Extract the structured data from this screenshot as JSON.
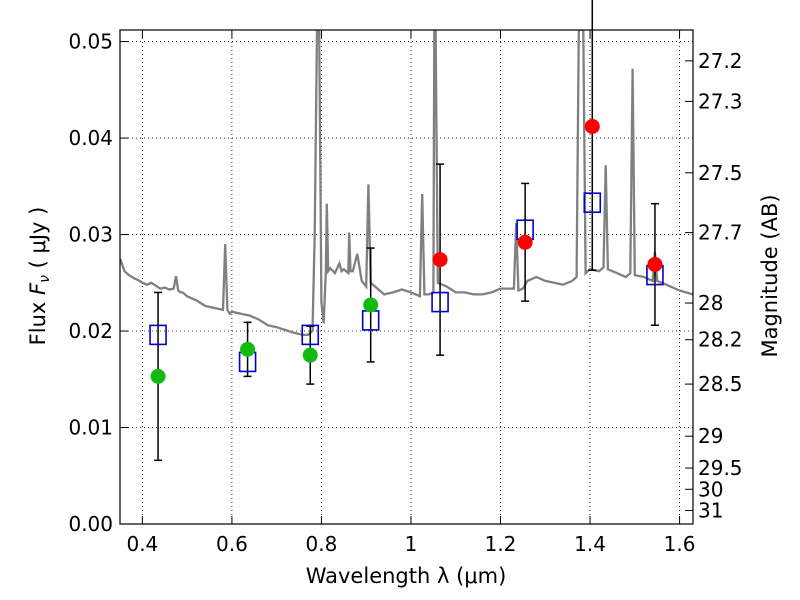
{
  "chart_data": {
    "type": "scatter",
    "xlabel": "Wavelength  λ (μm)",
    "ylabel": "Flux  F_ν  ( μJy )",
    "y2label": "Magnitude (AB)",
    "xlim": [
      0.35,
      1.63
    ],
    "ylim": [
      0.0,
      0.0512
    ],
    "grid": true,
    "x_ticks": [
      0.4,
      0.6,
      0.8,
      1.0,
      1.2,
      1.4,
      1.6
    ],
    "x_tick_labels": [
      "0.4",
      "0.6",
      "0.8",
      "1",
      "1.2",
      "1.4",
      "1.6"
    ],
    "y_ticks": [
      0.0,
      0.01,
      0.02,
      0.03,
      0.04,
      0.05
    ],
    "y_tick_labels": [
      "0.00",
      "0.01",
      "0.02",
      "0.03",
      "0.04",
      "0.05"
    ],
    "mag_ticks": [
      {
        "label": "27.2",
        "y": 0.048
      },
      {
        "label": "27.3",
        "y": 0.0438
      },
      {
        "label": "27.5",
        "y": 0.0364
      },
      {
        "label": "27.7",
        "y": 0.0302
      },
      {
        "label": "28",
        "y": 0.0229
      },
      {
        "label": "28.2",
        "y": 0.0191
      },
      {
        "label": "28.5",
        "y": 0.0145
      },
      {
        "label": "29",
        "y": 0.0091
      },
      {
        "label": "29.5",
        "y": 0.0058
      },
      {
        "label": "30",
        "y": 0.0036
      },
      {
        "label": "31",
        "y": 0.0014
      }
    ],
    "colors": {
      "model": "#808080",
      "observed_green": "#11bb11",
      "observed_red": "#ff0000",
      "model_box": "#0000cc",
      "errorbar": "#000000"
    },
    "series": [
      {
        "kind": "observed_green",
        "points": [
          {
            "x": 0.435,
            "y": 0.0153,
            "err": 0.0087
          },
          {
            "x": 0.635,
            "y": 0.0181,
            "err": 0.0028
          },
          {
            "x": 0.775,
            "y": 0.0175,
            "err": 0.003
          },
          {
            "x": 0.91,
            "y": 0.0227,
            "err": 0.0059
          }
        ]
      },
      {
        "kind": "observed_red",
        "points": [
          {
            "x": 1.065,
            "y": 0.0274,
            "err": 0.0099
          },
          {
            "x": 1.255,
            "y": 0.0292,
            "err": 0.0061
          },
          {
            "x": 1.405,
            "y": 0.0412,
            "err": 0.0149
          },
          {
            "x": 1.545,
            "y": 0.0269,
            "err": 0.0063
          }
        ]
      },
      {
        "kind": "model_box",
        "points": [
          {
            "x": 0.435,
            "y": 0.0196
          },
          {
            "x": 0.635,
            "y": 0.0168
          },
          {
            "x": 0.775,
            "y": 0.0196
          },
          {
            "x": 0.91,
            "y": 0.0211
          },
          {
            "x": 1.065,
            "y": 0.023
          },
          {
            "x": 1.255,
            "y": 0.0305
          },
          {
            "x": 1.405,
            "y": 0.0333
          },
          {
            "x": 1.545,
            "y": 0.0258
          }
        ]
      },
      {
        "kind": "model_spectrum",
        "x": [
          0.35,
          0.36,
          0.37,
          0.38,
          0.39,
          0.4,
          0.41,
          0.42,
          0.43,
          0.44,
          0.45,
          0.46,
          0.47,
          0.475,
          0.48,
          0.485,
          0.49,
          0.5,
          0.52,
          0.54,
          0.56,
          0.58,
          0.585,
          0.59,
          0.595,
          0.6,
          0.62,
          0.64,
          0.66,
          0.68,
          0.7,
          0.72,
          0.74,
          0.76,
          0.77,
          0.78,
          0.785,
          0.79,
          0.795,
          0.8,
          0.805,
          0.81,
          0.812,
          0.815,
          0.82,
          0.83,
          0.84,
          0.845,
          0.85,
          0.86,
          0.862,
          0.865,
          0.87,
          0.88,
          0.89,
          0.9,
          0.905,
          0.91,
          0.915,
          0.92,
          0.94,
          0.96,
          0.98,
          1.0,
          1.02,
          1.025,
          1.03,
          1.04,
          1.05,
          1.052,
          1.055,
          1.06,
          1.08,
          1.1,
          1.12,
          1.14,
          1.16,
          1.18,
          1.2,
          1.22,
          1.23,
          1.235,
          1.24,
          1.25,
          1.26,
          1.28,
          1.3,
          1.32,
          1.34,
          1.36,
          1.37,
          1.375,
          1.38,
          1.385,
          1.39,
          1.4,
          1.42,
          1.43,
          1.435,
          1.44,
          1.46,
          1.48,
          1.49,
          1.495,
          1.5,
          1.52,
          1.54,
          1.545,
          1.55,
          1.56,
          1.58,
          1.6,
          1.63
        ],
        "y": [
          0.0275,
          0.0262,
          0.0258,
          0.0255,
          0.0253,
          0.025,
          0.0248,
          0.025,
          0.0247,
          0.0244,
          0.0245,
          0.0243,
          0.0244,
          0.0257,
          0.0242,
          0.024,
          0.024,
          0.0236,
          0.0232,
          0.0226,
          0.0224,
          0.0222,
          0.029,
          0.0222,
          0.0218,
          0.022,
          0.0218,
          0.0216,
          0.0212,
          0.0206,
          0.0204,
          0.0201,
          0.0198,
          0.0196,
          0.0196,
          0.02,
          0.03,
          0.0512,
          0.0512,
          0.023,
          0.0208,
          0.0264,
          0.0332,
          0.0262,
          0.0265,
          0.026,
          0.027,
          0.0262,
          0.0264,
          0.026,
          0.0302,
          0.0262,
          0.0262,
          0.028,
          0.0252,
          0.0246,
          0.0352,
          0.025,
          0.0248,
          0.0246,
          0.0238,
          0.024,
          0.0243,
          0.024,
          0.0236,
          0.0342,
          0.0238,
          0.0238,
          0.024,
          0.0512,
          0.0512,
          0.025,
          0.0246,
          0.024,
          0.024,
          0.0238,
          0.0238,
          0.024,
          0.0244,
          0.0244,
          0.0244,
          0.0312,
          0.0242,
          0.0244,
          0.0252,
          0.0256,
          0.0252,
          0.025,
          0.0248,
          0.0252,
          0.0256,
          0.0512,
          0.0512,
          0.0512,
          0.026,
          0.0264,
          0.0262,
          0.0266,
          0.0372,
          0.0264,
          0.026,
          0.0256,
          0.026,
          0.0472,
          0.0258,
          0.0256,
          0.0252,
          0.0282,
          0.0252,
          0.025,
          0.0246,
          0.0242,
          0.0238
        ]
      }
    ]
  }
}
